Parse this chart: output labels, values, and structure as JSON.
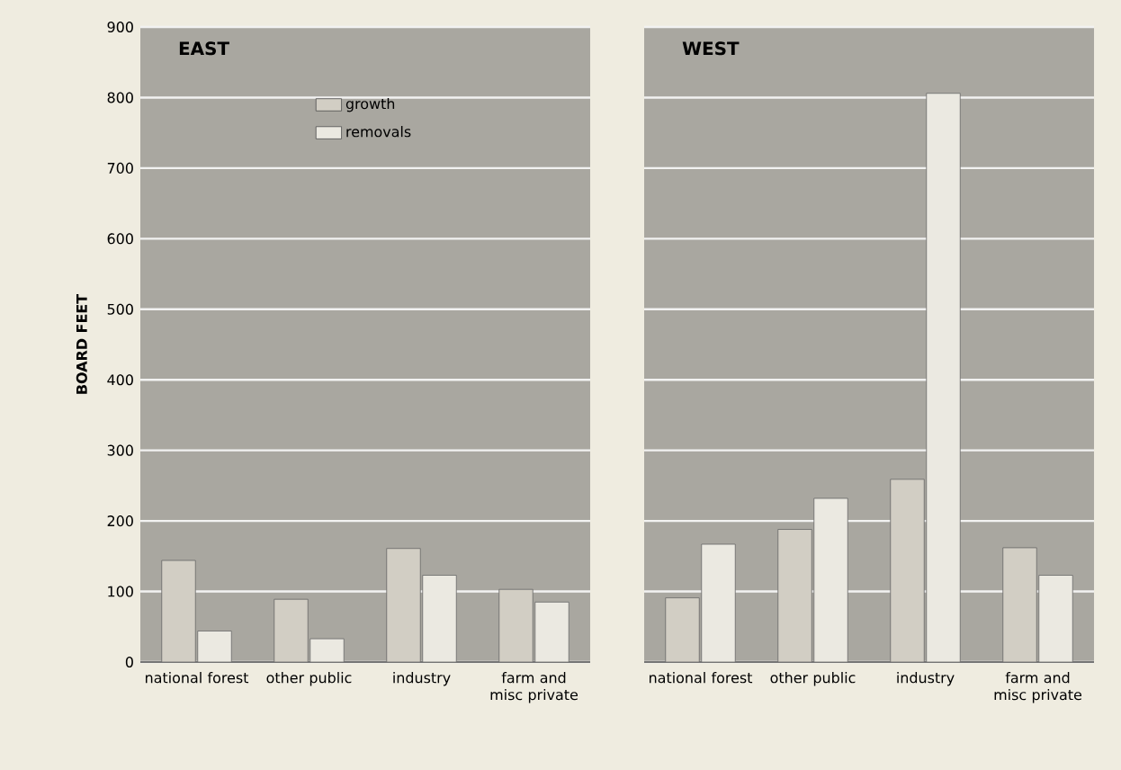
{
  "chart_data": [
    {
      "type": "bar",
      "title": "EAST",
      "ylabel": "BOARD FEET",
      "categories": [
        "national forest",
        "other public",
        "industry",
        "farm and misc private"
      ],
      "series": [
        {
          "name": "growth",
          "color": "#d2cec4",
          "values": [
            144,
            89,
            161,
            103
          ]
        },
        {
          "name": "removals",
          "color": "#ebe9e1",
          "values": [
            44,
            33,
            123,
            85
          ]
        }
      ],
      "ylim": [
        0,
        900
      ],
      "yticks": [
        0,
        100,
        200,
        300,
        400,
        500,
        600,
        700,
        800,
        900
      ],
      "grid": "y",
      "legend": "top"
    },
    {
      "type": "bar",
      "title": "WEST",
      "categories": [
        "national forest",
        "other public",
        "industry",
        "farm and misc private"
      ],
      "series": [
        {
          "color": "#d2cec4",
          "values": [
            91,
            188,
            259,
            162
          ]
        },
        {
          "color": "#ebe9e1",
          "values": [
            167,
            232,
            806,
            123
          ]
        }
      ],
      "ylim": [
        0,
        900
      ],
      "yticks": [
        0,
        100,
        200,
        300,
        400,
        500,
        600,
        700,
        800,
        900
      ],
      "grid": "y",
      "tick_labels": "x"
    }
  ]
}
